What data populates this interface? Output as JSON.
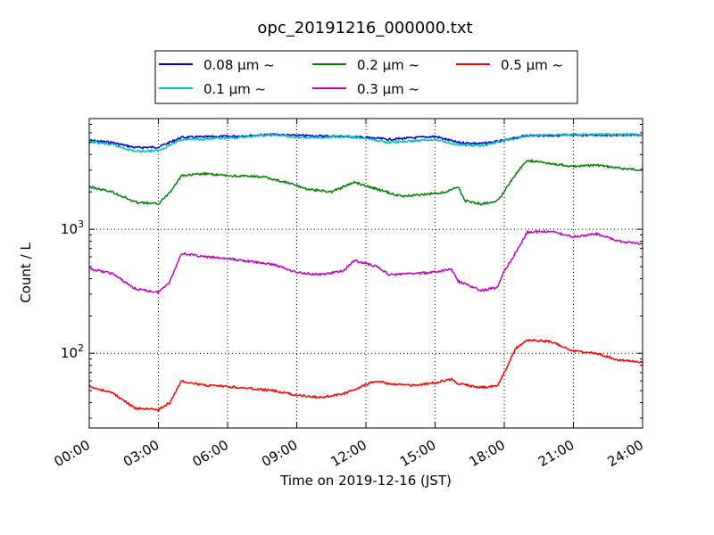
{
  "chart_data": {
    "type": "line",
    "title": "opc_20191216_000000.txt",
    "xlabel": "Time on 2019-12-16 (JST)",
    "ylabel": "Count / L",
    "x_unit": "hour",
    "xlim": [
      0,
      24
    ],
    "ylim": [
      25,
      7800
    ],
    "yscale": "log",
    "grid": true,
    "legend_position": "top, above plot",
    "x_ticks": [
      {
        "value": 0,
        "label": "00:00"
      },
      {
        "value": 3,
        "label": "03:00"
      },
      {
        "value": 6,
        "label": "06:00"
      },
      {
        "value": 9,
        "label": "09:00"
      },
      {
        "value": 12,
        "label": "12:00"
      },
      {
        "value": 15,
        "label": "15:00"
      },
      {
        "value": 18,
        "label": "18:00"
      },
      {
        "value": 21,
        "label": "21:00"
      },
      {
        "value": 24,
        "label": "24:00"
      }
    ],
    "y_ticks": [
      {
        "value": 100,
        "base": "10",
        "exp": "2"
      },
      {
        "value": 1000,
        "base": "10",
        "exp": "3"
      }
    ],
    "series": [
      {
        "name": "0.08 μm ~",
        "color": "#0000cc",
        "points": [
          [
            0,
            5200
          ],
          [
            1,
            5000
          ],
          [
            2,
            4550
          ],
          [
            3,
            4600
          ],
          [
            4,
            5500
          ],
          [
            6,
            5600
          ],
          [
            8,
            5800
          ],
          [
            9,
            5700
          ],
          [
            10,
            5650
          ],
          [
            11,
            5600
          ],
          [
            12,
            5500
          ],
          [
            13,
            5300
          ],
          [
            15,
            5600
          ],
          [
            16,
            5000
          ],
          [
            17,
            4900
          ],
          [
            18,
            5200
          ],
          [
            19,
            5700
          ],
          [
            21,
            5700
          ],
          [
            22,
            5750
          ],
          [
            24,
            5750
          ]
        ]
      },
      {
        "name": "0.1 μm ~",
        "color": "#00c0c0",
        "points": [
          [
            0,
            5100
          ],
          [
            1,
            4800
          ],
          [
            2,
            4250
          ],
          [
            3,
            4300
          ],
          [
            4,
            5300
          ],
          [
            6,
            5400
          ],
          [
            8,
            5800
          ],
          [
            9,
            5500
          ],
          [
            10,
            5500
          ],
          [
            11,
            5600
          ],
          [
            12,
            5400
          ],
          [
            13,
            5000
          ],
          [
            15,
            5300
          ],
          [
            16,
            4800
          ],
          [
            17,
            4700
          ],
          [
            18,
            5200
          ],
          [
            19,
            5700
          ],
          [
            21,
            5800
          ],
          [
            22,
            5800
          ],
          [
            24,
            5800
          ]
        ]
      },
      {
        "name": "0.2 μm ~",
        "color": "#008000",
        "points": [
          [
            0,
            2200
          ],
          [
            1,
            2000
          ],
          [
            2,
            1650
          ],
          [
            3,
            1600
          ],
          [
            3.5,
            2000
          ],
          [
            4,
            2700
          ],
          [
            5,
            2800
          ],
          [
            6,
            2700
          ],
          [
            7.5,
            2650
          ],
          [
            8.5,
            2400
          ],
          [
            9.5,
            2100
          ],
          [
            10.5,
            2000
          ],
          [
            11.5,
            2400
          ],
          [
            12.5,
            2100
          ],
          [
            13.5,
            1850
          ],
          [
            14.5,
            1900
          ],
          [
            15.5,
            2000
          ],
          [
            16,
            2200
          ],
          [
            16.3,
            1700
          ],
          [
            17,
            1600
          ],
          [
            17.7,
            1700
          ],
          [
            18,
            2000
          ],
          [
            18.5,
            2800
          ],
          [
            19,
            3600
          ],
          [
            20,
            3400
          ],
          [
            21,
            3200
          ],
          [
            22,
            3300
          ],
          [
            23,
            3100
          ],
          [
            24,
            3000
          ]
        ]
      },
      {
        "name": "0.3 μm ~",
        "color": "#c000c0",
        "points": [
          [
            0,
            480
          ],
          [
            1,
            440
          ],
          [
            2,
            330
          ],
          [
            3,
            310
          ],
          [
            3.5,
            380
          ],
          [
            4,
            640
          ],
          [
            5,
            600
          ],
          [
            6,
            580
          ],
          [
            8,
            520
          ],
          [
            9,
            450
          ],
          [
            10,
            430
          ],
          [
            11,
            460
          ],
          [
            11.5,
            560
          ],
          [
            12.5,
            500
          ],
          [
            13,
            430
          ],
          [
            15,
            450
          ],
          [
            15.7,
            480
          ],
          [
            16,
            380
          ],
          [
            16.5,
            350
          ],
          [
            17,
            320
          ],
          [
            17.7,
            340
          ],
          [
            18,
            460
          ],
          [
            18.5,
            650
          ],
          [
            19,
            950
          ],
          [
            20,
            960
          ],
          [
            21,
            870
          ],
          [
            22,
            920
          ],
          [
            23,
            800
          ],
          [
            24,
            760
          ]
        ]
      },
      {
        "name": "0.5 μm ~",
        "color": "#ff0000",
        "points": [
          [
            0,
            54
          ],
          [
            1,
            48
          ],
          [
            2,
            36
          ],
          [
            3,
            35
          ],
          [
            3.5,
            40
          ],
          [
            4,
            60
          ],
          [
            5,
            55
          ],
          [
            6,
            54
          ],
          [
            7,
            52
          ],
          [
            8,
            50
          ],
          [
            9,
            46
          ],
          [
            10,
            44
          ],
          [
            11,
            47
          ],
          [
            12,
            56
          ],
          [
            12.5,
            60
          ],
          [
            13,
            57
          ],
          [
            14,
            55
          ],
          [
            15,
            58
          ],
          [
            15.7,
            62
          ],
          [
            16,
            57
          ],
          [
            17,
            53
          ],
          [
            17.7,
            55
          ],
          [
            18,
            70
          ],
          [
            18.5,
            110
          ],
          [
            19,
            128
          ],
          [
            20,
            125
          ],
          [
            21,
            104
          ],
          [
            22,
            100
          ],
          [
            23,
            88
          ],
          [
            24,
            85
          ]
        ]
      }
    ]
  }
}
